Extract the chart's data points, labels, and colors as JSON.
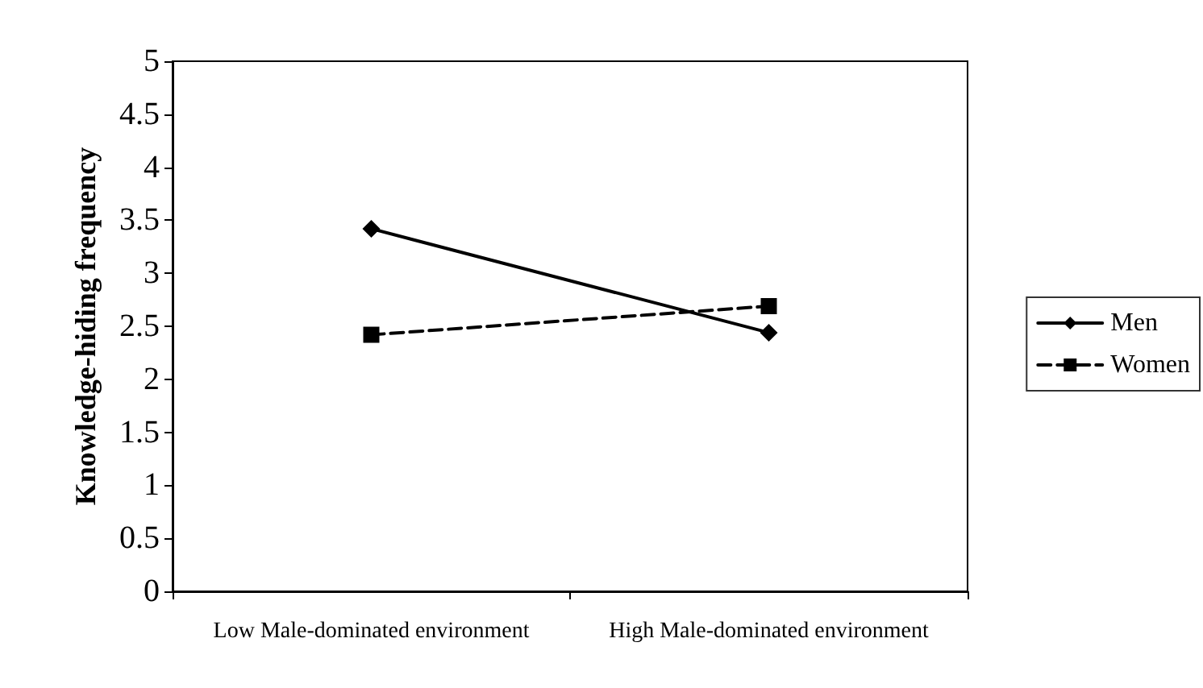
{
  "chart_data": {
    "type": "line",
    "ylabel": "Knowledge-hiding frequency",
    "categories": [
      "Low Male-dominated environment",
      "High Male-dominated environment"
    ],
    "series": [
      {
        "name": "Men",
        "color": "#000000",
        "values": [
          3.42,
          2.44
        ],
        "marker": "diamond",
        "line_style": "solid"
      },
      {
        "name": "Women",
        "color": "#000000",
        "values": [
          2.42,
          2.69
        ],
        "marker": "square",
        "line_style": "dashed"
      }
    ],
    "ylim": [
      0,
      5
    ],
    "yticks": [
      0,
      0.5,
      1,
      1.5,
      2,
      2.5,
      3,
      3.5,
      4,
      4.5,
      5
    ],
    "grid": false,
    "legend": "right"
  }
}
